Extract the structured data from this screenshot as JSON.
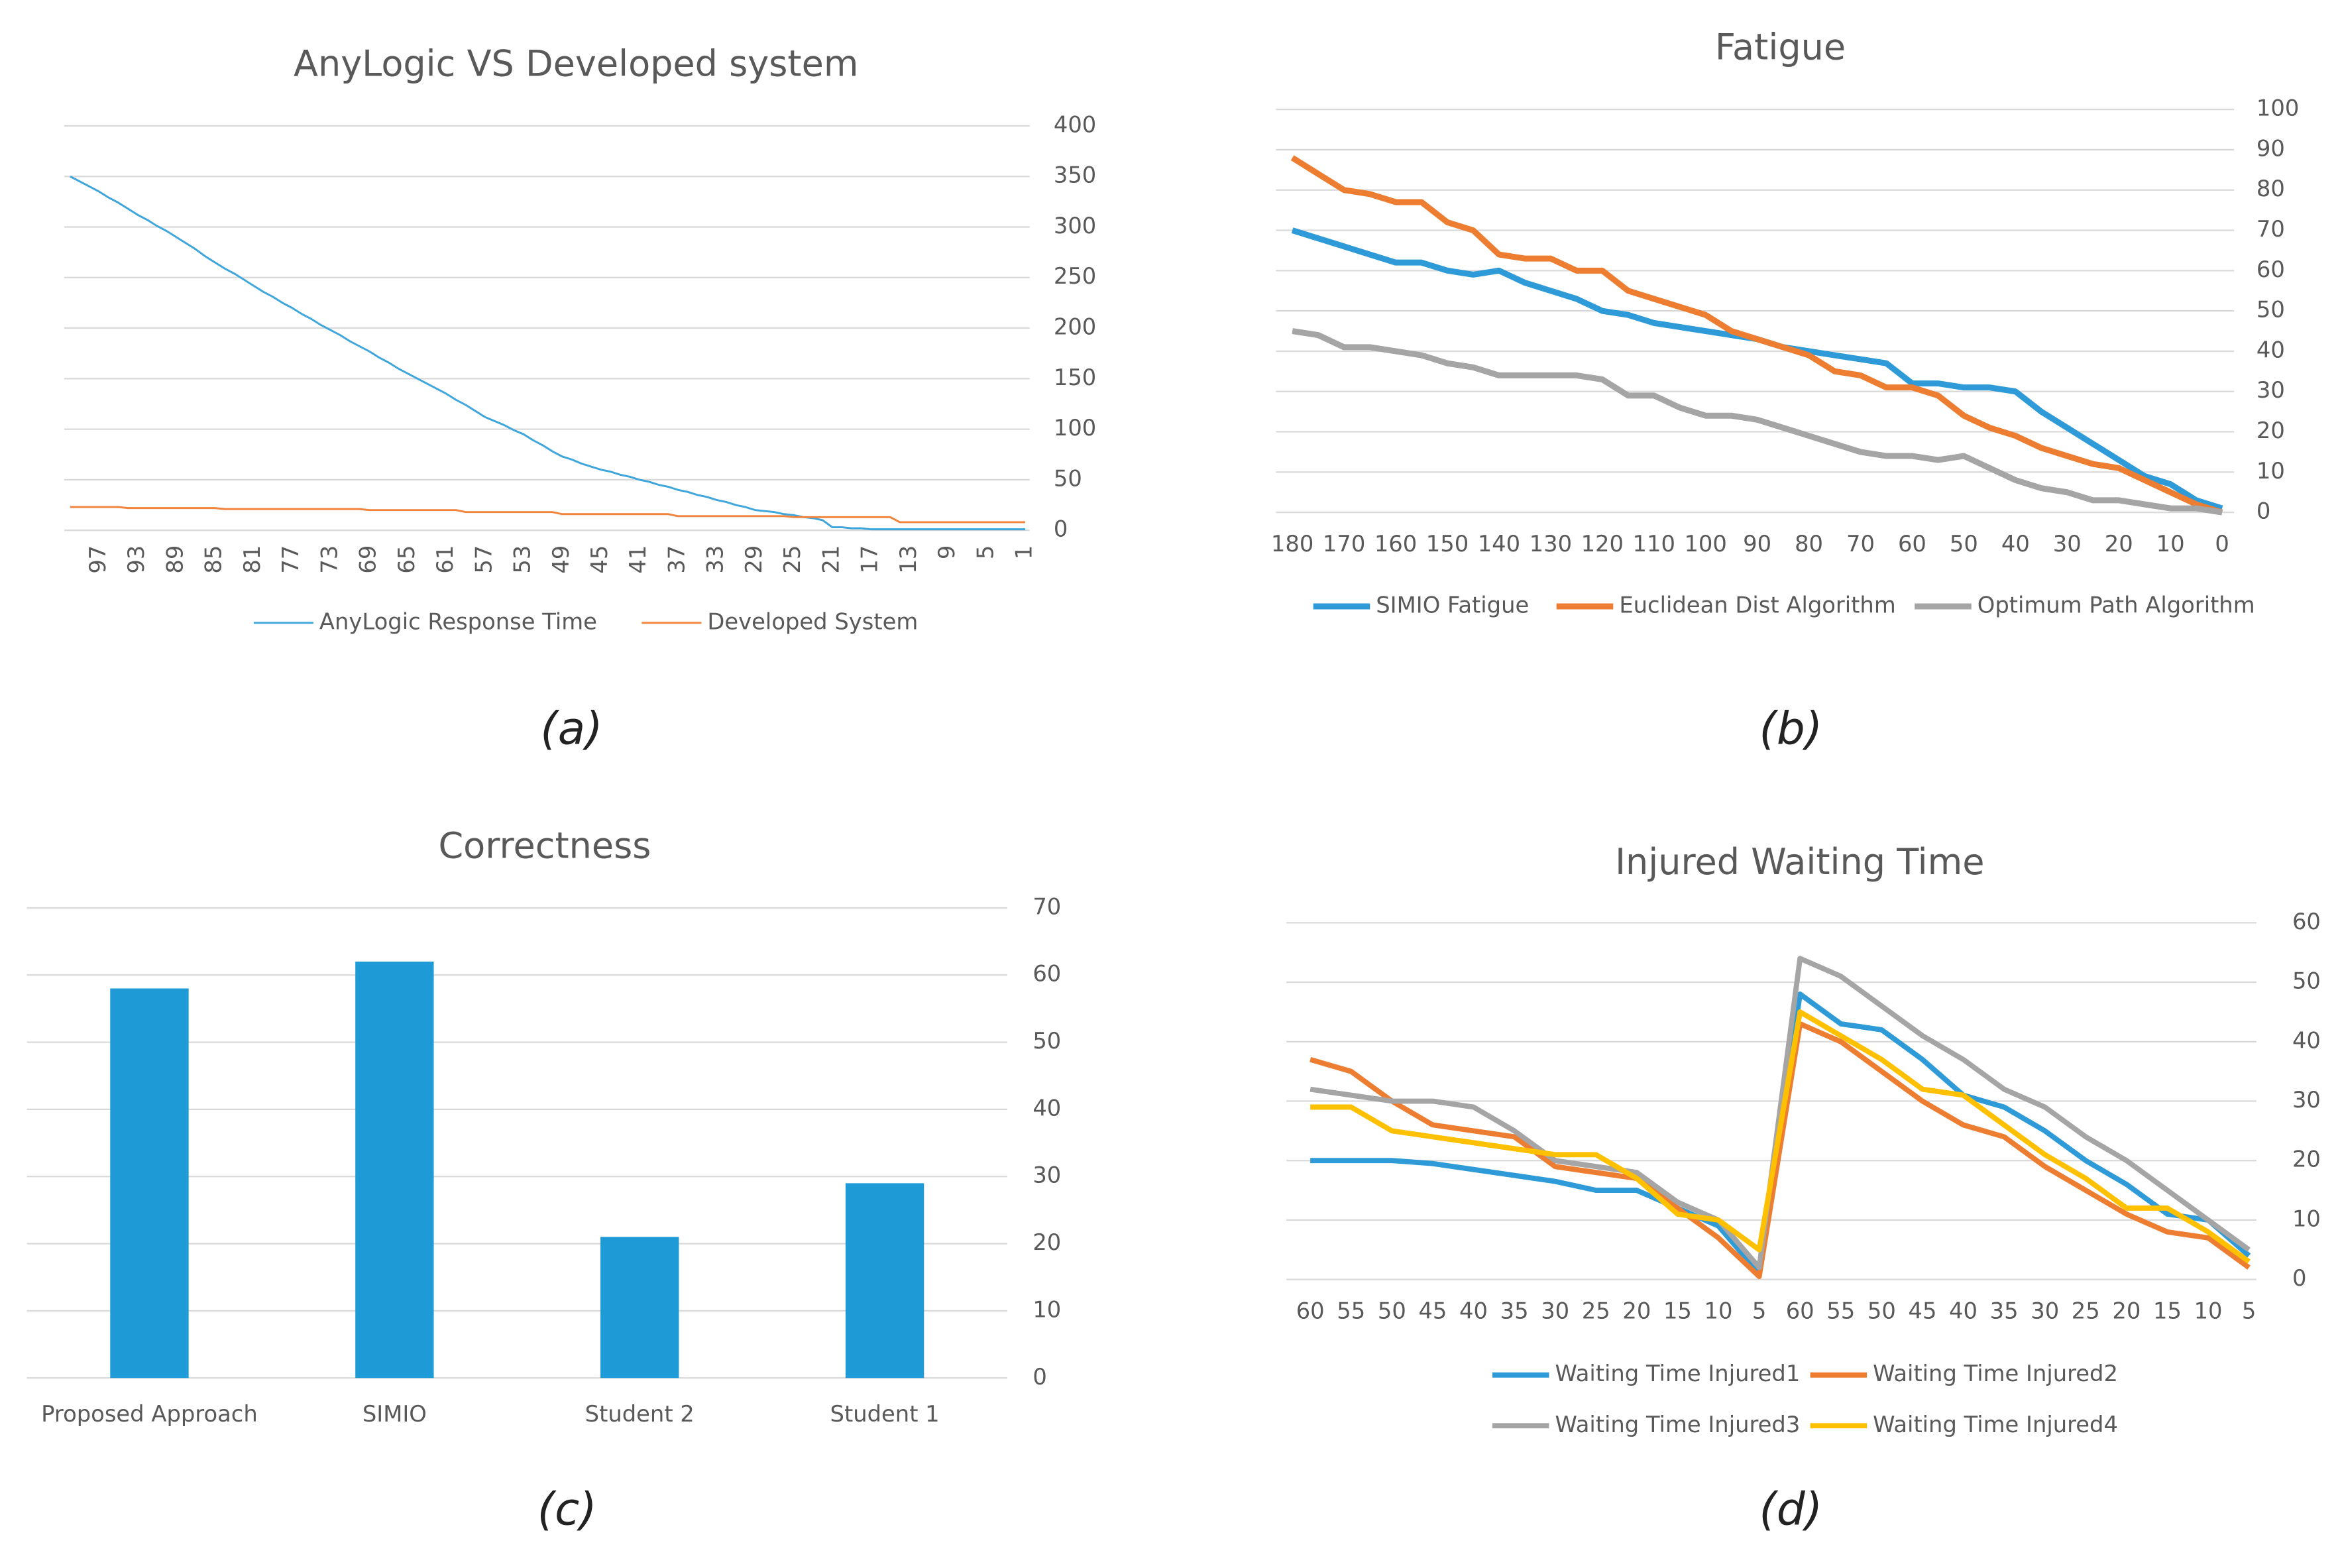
{
  "chart_data": [
    {
      "type": "line",
      "title": "AnyLogic VS  Developed system",
      "caption": "(a)",
      "categories": [
        null,
        null,
        null,
        "97",
        null,
        null,
        null,
        "93",
        null,
        null,
        null,
        "89",
        null,
        null,
        null,
        "85",
        null,
        null,
        null,
        "81",
        null,
        null,
        null,
        "77",
        null,
        null,
        null,
        "73",
        null,
        null,
        null,
        "69",
        null,
        null,
        null,
        "65",
        null,
        null,
        null,
        "61",
        null,
        null,
        null,
        "57",
        null,
        null,
        null,
        "53",
        null,
        null,
        null,
        "49",
        null,
        null,
        null,
        "45",
        null,
        null,
        null,
        "41",
        null,
        null,
        null,
        "37",
        null,
        null,
        null,
        "33",
        null,
        null,
        null,
        "29",
        null,
        null,
        null,
        "25",
        null,
        null,
        null,
        "21",
        null,
        null,
        null,
        "17",
        null,
        null,
        null,
        "13",
        null,
        null,
        null,
        "9",
        null,
        null,
        null,
        "5",
        null,
        null,
        null,
        "1"
      ],
      "series": [
        {
          "name": "AnyLogic Response Time",
          "color": "#3fa6dc",
          "values": [
            350,
            345,
            340,
            335,
            329,
            324,
            318,
            312,
            307,
            301,
            296,
            290,
            284,
            278,
            271,
            265,
            259,
            254,
            248,
            242,
            236,
            231,
            225,
            220,
            214,
            209,
            203,
            198,
            193,
            187,
            182,
            177,
            171,
            166,
            160,
            155,
            150,
            145,
            140,
            135,
            129,
            124,
            118,
            112,
            108,
            104,
            99,
            95,
            89,
            84,
            78,
            73,
            70,
            66,
            63,
            60,
            58,
            55,
            53,
            50,
            48,
            45,
            43,
            40,
            38,
            35,
            33,
            30,
            28,
            25,
            23,
            20,
            19,
            18,
            16,
            15,
            13,
            12,
            10,
            3,
            3,
            2,
            2,
            1,
            1,
            1,
            1,
            1,
            1,
            1,
            1,
            1,
            1,
            1,
            1,
            1,
            1,
            1,
            1,
            1
          ]
        },
        {
          "name": "Developed System",
          "color": "#f0843c",
          "values": [
            23,
            23,
            23,
            23,
            23,
            23,
            22,
            22,
            22,
            22,
            22,
            22,
            22,
            22,
            22,
            22,
            21,
            21,
            21,
            21,
            21,
            21,
            21,
            21,
            21,
            21,
            21,
            21,
            21,
            21,
            21,
            20,
            20,
            20,
            20,
            20,
            20,
            20,
            20,
            20,
            20,
            18,
            18,
            18,
            18,
            18,
            18,
            18,
            18,
            18,
            18,
            16,
            16,
            16,
            16,
            16,
            16,
            16,
            16,
            16,
            16,
            16,
            16,
            14,
            14,
            14,
            14,
            14,
            14,
            14,
            14,
            14,
            14,
            14,
            14,
            13,
            13,
            13,
            13,
            13,
            13,
            13,
            13,
            13,
            13,
            13,
            8,
            8,
            8,
            8,
            8,
            8,
            8,
            8,
            8,
            8,
            8,
            8,
            8,
            8
          ]
        }
      ],
      "ylim": [
        0,
        400
      ],
      "yticks": [
        0,
        50,
        100,
        150,
        200,
        250,
        300,
        350,
        400
      ],
      "grid": true,
      "legend": "bottom"
    },
    {
      "type": "line",
      "title": "Fatigue",
      "caption": "(b)",
      "x": [
        180,
        175,
        170,
        165,
        160,
        155,
        150,
        145,
        140,
        135,
        130,
        125,
        120,
        115,
        110,
        105,
        100,
        95,
        90,
        85,
        80,
        75,
        70,
        65,
        60,
        55,
        50,
        45,
        40,
        35,
        30,
        25,
        20,
        15,
        10,
        5,
        0
      ],
      "xlim": [
        180,
        0
      ],
      "xticks": [
        180,
        170,
        160,
        150,
        140,
        130,
        120,
        110,
        100,
        90,
        80,
        70,
        60,
        50,
        40,
        30,
        20,
        10,
        0
      ],
      "series": [
        {
          "name": "SIMIO Fatigue",
          "color": "#2e9bd8",
          "values": [
            70,
            68,
            66,
            64,
            62,
            62,
            60,
            59,
            60,
            57,
            55,
            53,
            50,
            49,
            47,
            46,
            45,
            44,
            43,
            41,
            40,
            39,
            38,
            37,
            32,
            32,
            31,
            31,
            30,
            25,
            21,
            17,
            13,
            9,
            7,
            3,
            1
          ]
        },
        {
          "name": "Euclidean Dist Algorithm",
          "color": "#ed7d31",
          "values": [
            88,
            84,
            80,
            79,
            77,
            77,
            72,
            70,
            64,
            63,
            63,
            60,
            60,
            55,
            53,
            51,
            49,
            45,
            43,
            41,
            39,
            35,
            34,
            31,
            31,
            29,
            24,
            21,
            19,
            16,
            14,
            12,
            11,
            8,
            5,
            2,
            0
          ]
        },
        {
          "name": "Optimum Path Algorithm",
          "color": "#a5a5a5",
          "values": [
            45,
            44,
            41,
            41,
            40,
            39,
            37,
            36,
            34,
            34,
            34,
            34,
            33,
            29,
            29,
            26,
            24,
            24,
            23,
            21,
            19,
            17,
            15,
            14,
            14,
            13,
            14,
            11,
            8,
            6,
            5,
            3,
            3,
            2,
            1,
            1,
            0
          ]
        }
      ],
      "ylim": [
        0,
        100
      ],
      "yticks": [
        0,
        10,
        20,
        30,
        40,
        50,
        60,
        70,
        80,
        90,
        100
      ],
      "grid": true,
      "legend": "bottom"
    },
    {
      "type": "bar",
      "title": "Correctness",
      "caption": "(c)",
      "categories": [
        "Proposed Approach",
        "SIMIO",
        "Student 2",
        "Student 1"
      ],
      "values": [
        58,
        62,
        21,
        29
      ],
      "color": "#1e9bd7",
      "ylim": [
        0,
        70
      ],
      "yticks": [
        0,
        10,
        20,
        30,
        40,
        50,
        60,
        70
      ],
      "grid": true
    },
    {
      "type": "line",
      "title": "Injured Waiting Time",
      "caption": "(d)",
      "categories": [
        "60",
        "55",
        "50",
        "45",
        "40",
        "35",
        "30",
        "25",
        "20",
        "15",
        "10",
        "5",
        "60",
        "55",
        "50",
        "45",
        "40",
        "35",
        "30",
        "25",
        "20",
        "15",
        "10",
        "5"
      ],
      "series": [
        {
          "name": "Waiting Time Injured1",
          "color": "#2e9bd8",
          "values": [
            20,
            20,
            20,
            19.5,
            18.5,
            17.5,
            16.5,
            15,
            15,
            12,
            9,
            1,
            48,
            43,
            42,
            37,
            31,
            29,
            25,
            20,
            16,
            11,
            10,
            4
          ]
        },
        {
          "name": "Waiting Time Injured2",
          "color": "#ed7d31",
          "values": [
            37,
            35,
            30,
            26,
            25,
            24,
            19,
            18,
            17,
            12,
            7,
            0.5,
            43,
            40,
            35,
            30,
            26,
            24,
            19,
            15,
            11,
            8,
            7,
            2
          ]
        },
        {
          "name": "Waiting Time Injured3",
          "color": "#a5a5a5",
          "values": [
            32,
            31,
            30,
            30,
            29,
            25,
            20,
            19,
            18,
            13,
            10,
            2,
            54,
            51,
            46,
            41,
            37,
            32,
            29,
            24,
            20,
            15,
            10,
            5
          ]
        },
        {
          "name": "Waiting Time Injured4",
          "color": "#ffc000",
          "values": [
            29,
            29,
            25,
            24,
            23,
            22,
            21,
            21,
            17,
            11,
            10,
            5,
            45,
            41,
            37,
            32,
            31,
            26,
            21,
            17,
            12,
            12,
            8,
            3
          ]
        }
      ],
      "ylim": [
        0,
        60
      ],
      "yticks": [
        0,
        10,
        20,
        30,
        40,
        50,
        60
      ],
      "grid": true,
      "legend": "bottom"
    }
  ]
}
